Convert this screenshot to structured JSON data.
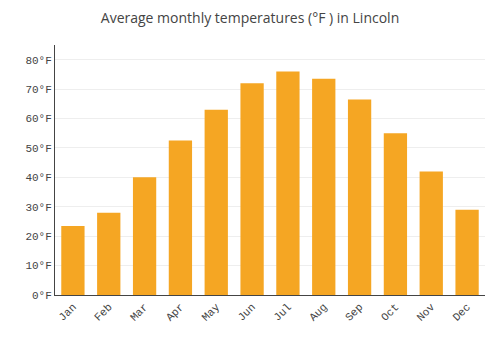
{
  "chart_data": {
    "type": "bar",
    "title": "Average monthly temperatures (°F ) in Lincoln",
    "categories": [
      "Jan",
      "Feb",
      "Mar",
      "Apr",
      "May",
      "Jun",
      "Jul",
      "Aug",
      "Sep",
      "Oct",
      "Nov",
      "Dec"
    ],
    "values": [
      23.5,
      28.0,
      40.0,
      52.5,
      63.0,
      72.0,
      76.0,
      73.5,
      66.5,
      55.0,
      42.0,
      29.0
    ],
    "color": "#F5A623",
    "ylim": [
      0,
      85
    ],
    "yticks": [
      {
        "value": 0,
        "label": "0°F"
      },
      {
        "value": 10,
        "label": "10°F"
      },
      {
        "value": 20,
        "label": "20°F"
      },
      {
        "value": 30,
        "label": "30°F"
      },
      {
        "value": 40,
        "label": "40°F"
      },
      {
        "value": 50,
        "label": "50°F"
      },
      {
        "value": 60,
        "label": "60°F"
      },
      {
        "value": 70,
        "label": "70°F"
      },
      {
        "value": 80,
        "label": "80°F"
      }
    ],
    "grid": true
  }
}
